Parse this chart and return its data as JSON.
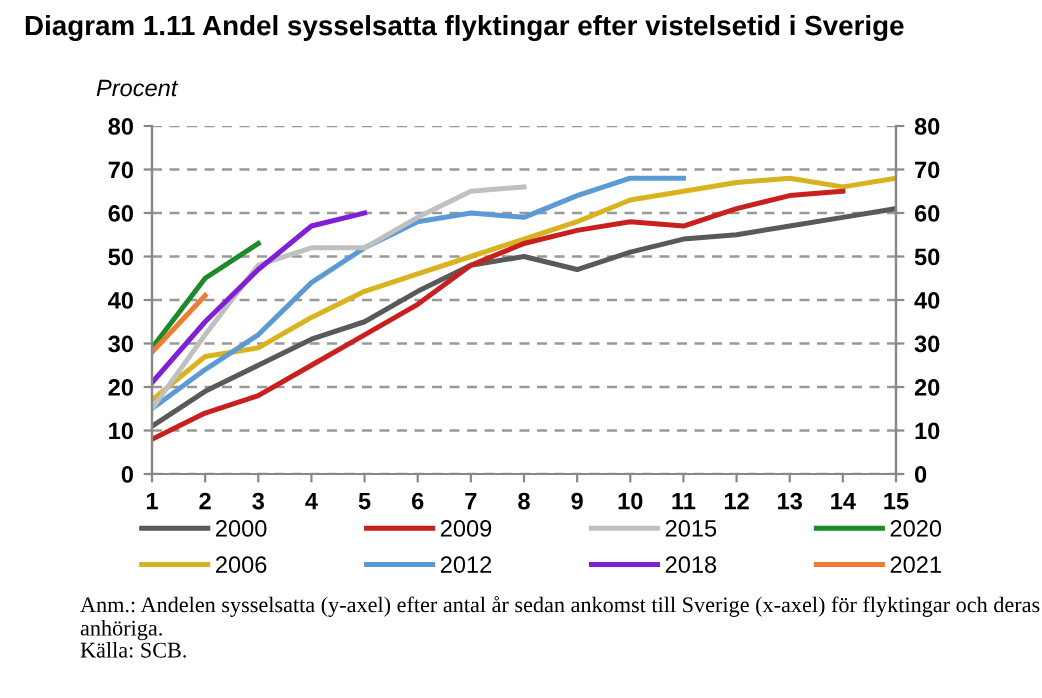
{
  "chart_data": {
    "type": "line",
    "title": "Diagram 1.11 Andel sysselsatta flyktingar efter vistelsetid i Sverige",
    "ylabel": "Procent",
    "x": [
      1,
      2,
      3,
      4,
      5,
      6,
      7,
      8,
      9,
      10,
      11,
      12,
      13,
      14,
      15
    ],
    "series": [
      {
        "name": "2000",
        "color": "#595959",
        "values": [
          11,
          19,
          25,
          31,
          35,
          42,
          48,
          50,
          47,
          51,
          54,
          55,
          57,
          59,
          61
        ]
      },
      {
        "name": "2006",
        "color": "#d9b21f",
        "values": [
          17,
          27,
          29,
          36,
          42,
          46,
          50,
          54,
          58,
          63,
          65,
          67,
          68,
          66,
          68
        ]
      },
      {
        "name": "2009",
        "color": "#c8201e",
        "values": [
          8,
          14,
          18,
          25,
          32,
          39,
          48,
          53,
          56,
          58,
          57,
          61,
          64,
          65,
          null
        ]
      },
      {
        "name": "2012",
        "color": "#5b9bd5",
        "values": [
          15,
          24,
          32,
          44,
          52,
          58,
          60,
          59,
          64,
          68,
          68,
          null,
          null,
          null,
          null
        ]
      },
      {
        "name": "2015",
        "color": "#c0c0c0",
        "values": [
          15,
          32,
          48,
          52,
          52,
          59,
          65,
          66,
          null,
          null,
          null,
          null,
          null,
          null,
          null
        ]
      },
      {
        "name": "2018",
        "color": "#7f1fd6",
        "values": [
          21,
          35,
          47,
          57,
          60,
          null,
          null,
          null,
          null,
          null,
          null,
          null,
          null,
          null,
          null
        ]
      },
      {
        "name": "2020",
        "color": "#1a8a2a",
        "values": [
          29,
          45,
          53,
          null,
          null,
          null,
          null,
          null,
          null,
          null,
          null,
          null,
          null,
          null,
          null
        ]
      },
      {
        "name": "2021",
        "color": "#ed7d31",
        "values": [
          28,
          41,
          null,
          null,
          null,
          null,
          null,
          null,
          null,
          null,
          null,
          null,
          null,
          null,
          null
        ]
      }
    ],
    "xlim": [
      1,
      15
    ],
    "xticks": [
      1,
      2,
      3,
      4,
      5,
      6,
      7,
      8,
      9,
      10,
      11,
      12,
      13,
      14,
      15
    ],
    "ylim": [
      0,
      80
    ],
    "yticks": [
      0,
      10,
      20,
      30,
      40,
      50,
      60,
      70,
      80
    ],
    "y2lim": [
      0,
      80
    ],
    "y2ticks": [
      0,
      10,
      20,
      30,
      40,
      50,
      60,
      70,
      80
    ],
    "grid": "y",
    "legend": "bottom",
    "marker": "none",
    "line_style": "solid",
    "annotations": [
      "Anm.: Andelen sysselsatta (y-axel) efter antal år sedan ankomst till Sverige (x-axel) för flyktingar och deras anhöriga.",
      "Källa: SCB."
    ]
  }
}
